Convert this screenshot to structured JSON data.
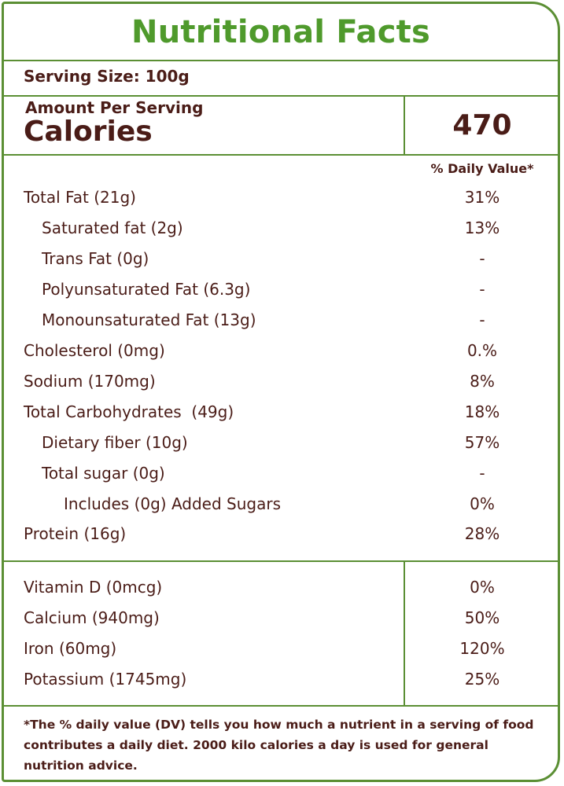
{
  "title": "Nutritional Facts",
  "serving_size": "Serving Size: 100g",
  "amount_per_serving": "Amount Per Serving",
  "calories_label": "Calories",
  "calories_value": "470",
  "daily_value_header": "% Daily Value*",
  "nutrients": [
    {
      "label": "Total Fat (21g)",
      "value": "31%"
    },
    {
      "label": "Saturated fat (2g)",
      "value": "13%"
    },
    {
      "label": "Trans Fat (0g)",
      "value": "-"
    },
    {
      "label": "Polyunsaturated Fat (6.3g)",
      "value": "-"
    },
    {
      "label": "Monounsaturated Fat (13g)",
      "value": "-"
    },
    {
      "label": "Cholesterol (0mg)",
      "value": "0.%"
    },
    {
      "label": "Sodium (170mg)",
      "value": "8%"
    },
    {
      "label": "Total Carbohydrates  (49g)",
      "value": "18%"
    },
    {
      "label": "Dietary fiber (10g)",
      "value": "57%"
    },
    {
      "label": "Total sugar (0g)",
      "value": "-"
    },
    {
      "label": "Includes (0g) Added Sugars",
      "value": "0%"
    },
    {
      "label": "Protein (16g)",
      "value": "28%"
    }
  ],
  "vitamins": [
    {
      "label": "Vitamin D (0mcg)",
      "value": "0%"
    },
    {
      "label": "Calcium (940mg)",
      "value": "50%"
    },
    {
      "label": "Iron (60mg)",
      "value": "120%"
    },
    {
      "label": "Potassium (1745mg)",
      "value": "25%"
    }
  ],
  "footnote": "*The % daily value (DV) tells you how much a nutrient in a serving of food contributes a daily diet. 2000 kilo calories a day is used for general nutrition advice."
}
